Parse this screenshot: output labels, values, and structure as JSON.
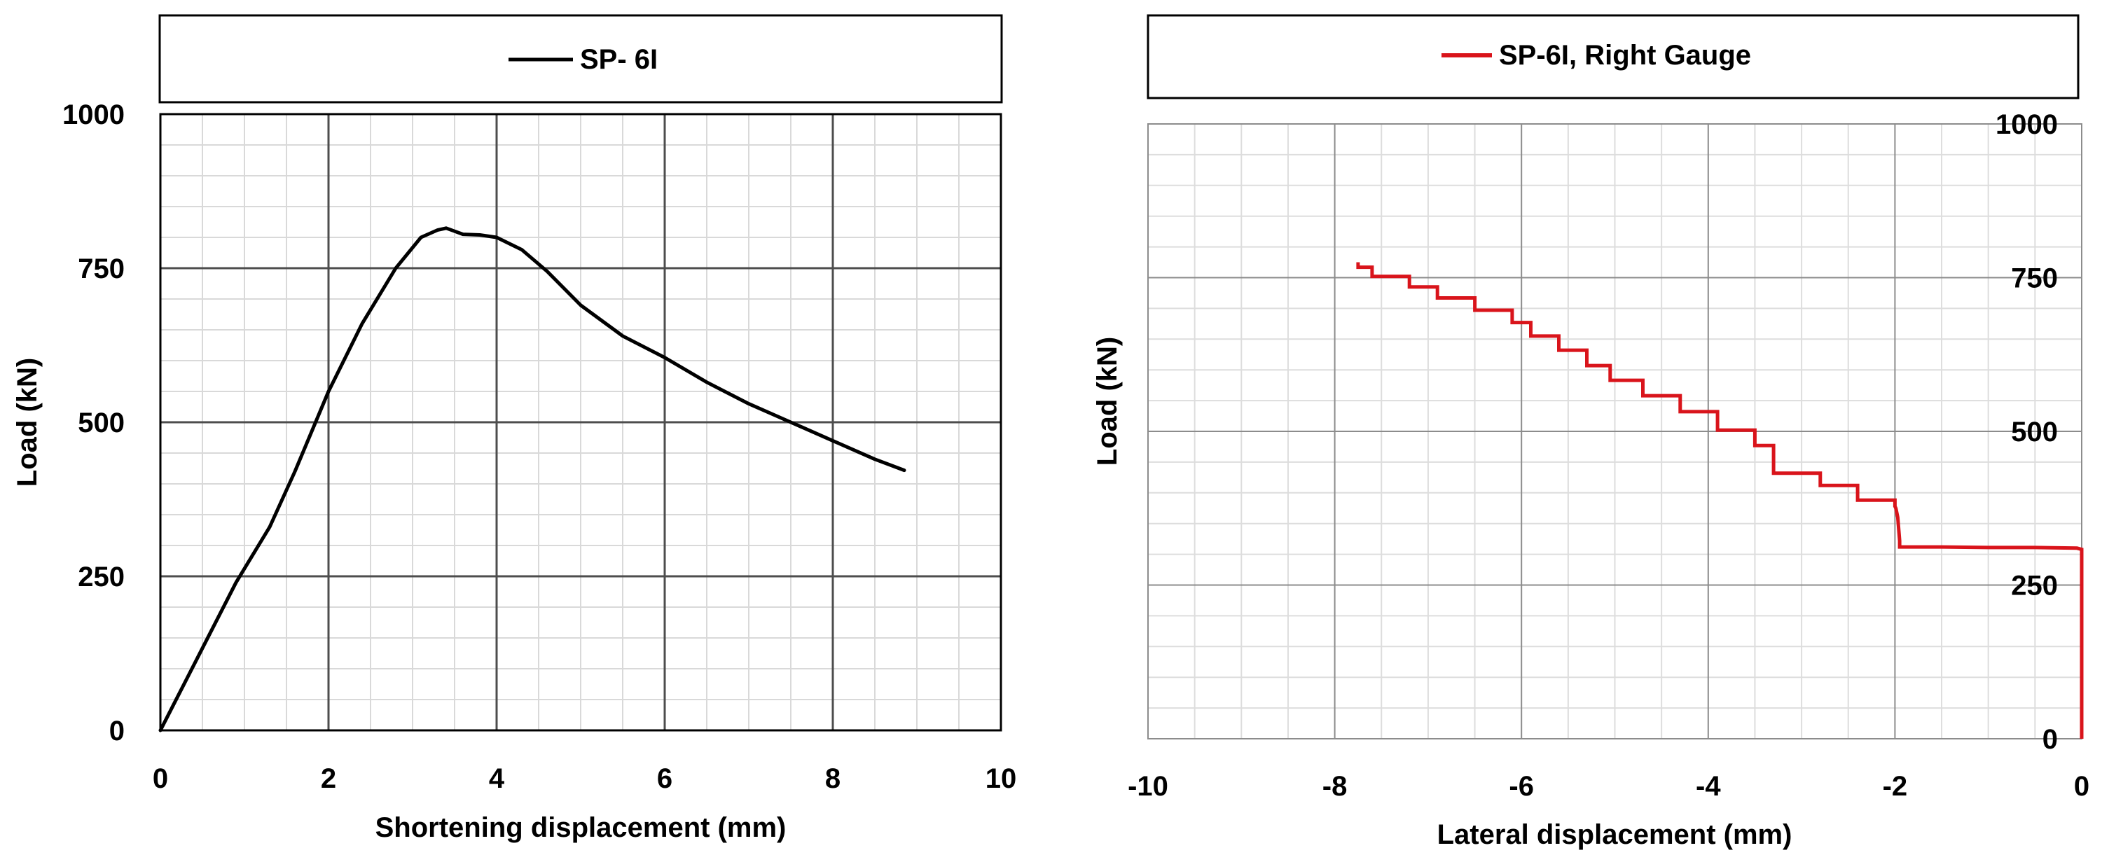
{
  "chart_data": [
    {
      "type": "line",
      "legend_position": "top",
      "xlabel": "Shortening displacement (mm)",
      "ylabel": "Load (kN)",
      "xlim": [
        0,
        10
      ],
      "ylim": [
        0,
        1000
      ],
      "x_ticks": [
        0,
        2,
        4,
        6,
        8,
        10
      ],
      "x_tick_labels": [
        "0",
        "2",
        "4",
        "6",
        "8",
        "10"
      ],
      "y_ticks": [
        0,
        250,
        500,
        750,
        1000
      ],
      "y_tick_labels": [
        "0",
        "250",
        "500",
        "750",
        "1000"
      ],
      "grid": true,
      "series": [
        {
          "name": "SP- 6I",
          "color": "#000000",
          "x": [
            0,
            0.3,
            0.6,
            0.9,
            1.3,
            1.6,
            2.0,
            2.4,
            2.8,
            3.1,
            3.3,
            3.4,
            3.5,
            3.6,
            3.8,
            4.0,
            4.3,
            4.6,
            5.0,
            5.5,
            6.0,
            6.5,
            7.0,
            7.5,
            8.0,
            8.5,
            8.85
          ],
          "y": [
            0,
            80,
            160,
            240,
            330,
            420,
            550,
            660,
            750,
            800,
            812,
            815,
            810,
            805,
            804,
            800,
            780,
            745,
            690,
            640,
            605,
            565,
            530,
            500,
            470,
            440,
            422
          ]
        }
      ]
    },
    {
      "type": "line",
      "legend_position": "top",
      "xlabel": "Lateral displacement (mm)",
      "ylabel": "Load (kN)",
      "y_axis_side": "right",
      "xlim": [
        -10,
        0
      ],
      "ylim": [
        0,
        1000
      ],
      "x_ticks": [
        -10,
        -8,
        -6,
        -4,
        -2,
        0
      ],
      "x_tick_labels": [
        "-10",
        "-8",
        "-6",
        "-4",
        "-2",
        "0"
      ],
      "y_ticks": [
        0,
        250,
        500,
        750,
        1000
      ],
      "y_tick_labels": [
        "0",
        "250",
        "500",
        "750",
        "1000"
      ],
      "grid": true,
      "series": [
        {
          "name": "SP-6I, Right Gauge",
          "color": "#D9141B",
          "x": [
            0.0,
            0.0,
            -0.05,
            -0.5,
            -1.0,
            -1.5,
            -1.95,
            -1.95,
            -1.97,
            -1.99,
            -2.0,
            -2.0,
            -2.4,
            -2.4,
            -2.8,
            -2.8,
            -3.3,
            -3.3,
            -3.5,
            -3.5,
            -3.9,
            -3.9,
            -4.3,
            -4.3,
            -4.7,
            -4.7,
            -5.05,
            -5.05,
            -5.3,
            -5.3,
            -5.6,
            -5.6,
            -5.9,
            -5.9,
            -6.1,
            -6.1,
            -6.5,
            -6.5,
            -6.9,
            -6.9,
            -7.2,
            -7.2,
            -7.6,
            -7.6,
            -7.75,
            -7.75
          ],
          "y": [
            0,
            308,
            310,
            311,
            311,
            312,
            312,
            322,
            360,
            375,
            378,
            388,
            388,
            412,
            412,
            432,
            432,
            477,
            477,
            502,
            502,
            532,
            532,
            558,
            558,
            583,
            583,
            607,
            607,
            632,
            632,
            655,
            655,
            677,
            677,
            697,
            697,
            717,
            717,
            735,
            735,
            752,
            752,
            767,
            767,
            775
          ]
        }
      ]
    }
  ]
}
